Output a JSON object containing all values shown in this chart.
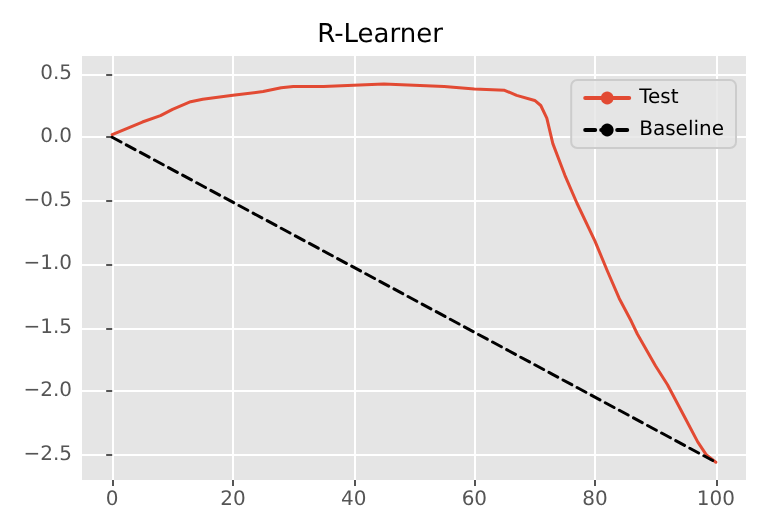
{
  "chart_data": {
    "type": "line",
    "title": "R-Learner",
    "series": [
      {
        "name": "Test",
        "color": "#e24a33",
        "line_style": "solid",
        "x": [
          0,
          3,
          5,
          8,
          10,
          13,
          15,
          20,
          25,
          28,
          30,
          35,
          40,
          45,
          50,
          55,
          60,
          65,
          67,
          70,
          71,
          72,
          73,
          75,
          77,
          80,
          82,
          84,
          86,
          87,
          90,
          92,
          95,
          97,
          98.4,
          100
        ],
        "values": [
          0.02,
          0.08,
          0.12,
          0.17,
          0.22,
          0.28,
          0.3,
          0.33,
          0.36,
          0.39,
          0.4,
          0.4,
          0.41,
          0.42,
          0.41,
          0.4,
          0.38,
          0.37,
          0.33,
          0.29,
          0.25,
          0.15,
          -0.05,
          -0.3,
          -0.52,
          -0.82,
          -1.05,
          -1.27,
          -1.45,
          -1.55,
          -1.8,
          -1.95,
          -2.22,
          -2.4,
          -2.5,
          -2.56
        ]
      },
      {
        "name": "Baseline",
        "color": "#000000",
        "line_style": "dashed",
        "x": [
          0,
          100
        ],
        "values": [
          0,
          -2.56
        ]
      }
    ],
    "xlim": [
      -5,
      105
    ],
    "xticks": [
      0,
      20,
      40,
      60,
      80,
      100
    ],
    "ylim": [
      -2.7,
      0.64
    ],
    "yticks": [
      {
        "value": -2.5,
        "label": "−2.5"
      },
      {
        "value": -2,
        "label": "−2.0"
      },
      {
        "value": -1.5,
        "label": "−1.5"
      },
      {
        "value": -1,
        "label": "−1.0"
      },
      {
        "value": -0.5,
        "label": "−0.5"
      },
      {
        "value": 0,
        "label": "0.0"
      },
      {
        "value": 0.5,
        "label": "0.5"
      }
    ],
    "grid": true,
    "legend": "top right",
    "marker": "none"
  }
}
